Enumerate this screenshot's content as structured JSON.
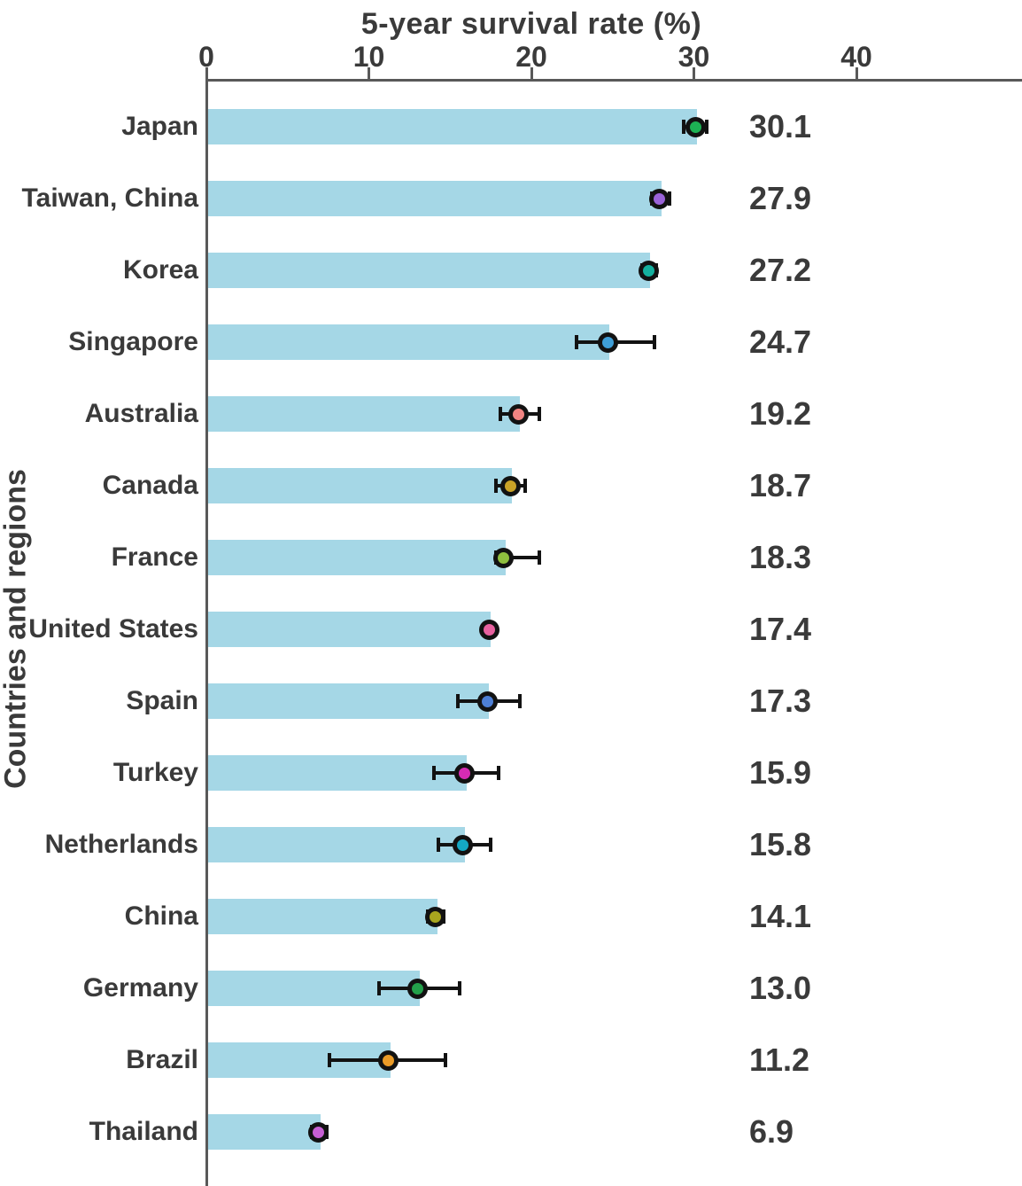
{
  "chart_data": {
    "type": "bar",
    "orientation": "horizontal",
    "title": "5-year survival rate (%)",
    "ylabel": "Countries and regions",
    "xlabel": "",
    "xlim": [
      0,
      50
    ],
    "xticks": [
      0,
      10,
      20,
      30,
      40
    ],
    "grid": false,
    "legend": "none",
    "bar_color": "#a5d7e6",
    "error_bar_color": "#121212",
    "axis_color": "#595959",
    "text_color": "#3a3a3a",
    "categories": [
      "Japan",
      "Taiwan, China",
      "Korea",
      "Singapore",
      "Australia",
      "Canada",
      "France",
      "United States",
      "Spain",
      "Turkey",
      "Netherlands",
      "China",
      "Germany",
      "Brazil",
      "Thailand"
    ],
    "values": [
      30.1,
      27.9,
      27.2,
      24.7,
      19.2,
      18.7,
      18.3,
      17.4,
      17.3,
      15.9,
      15.8,
      14.1,
      13.0,
      11.2,
      6.9
    ],
    "value_labels": [
      "30.1",
      "27.9",
      "27.2",
      "24.7",
      "19.2",
      "18.7",
      "18.3",
      "17.4",
      "17.3",
      "15.9",
      "15.8",
      "14.1",
      "13.0",
      "11.2",
      "6.9"
    ],
    "error_low": [
      29.4,
      27.4,
      26.8,
      22.8,
      18.1,
      17.8,
      17.8,
      17.1,
      15.5,
      14.0,
      14.3,
      13.6,
      10.6,
      7.6,
      6.5
    ],
    "error_high": [
      30.8,
      28.5,
      27.7,
      27.6,
      20.5,
      19.6,
      20.5,
      17.7,
      19.3,
      18.0,
      17.5,
      14.6,
      15.6,
      14.7,
      7.4
    ],
    "marker_colors": [
      "#1db254",
      "#9a63d8",
      "#14b09e",
      "#3f9fd8",
      "#f28482",
      "#c9a227",
      "#8fbf3f",
      "#e8619f",
      "#4d7fd6",
      "#d62bb4",
      "#14a8c4",
      "#a8a51e",
      "#23a04a",
      "#eb9b27",
      "#c75fd4"
    ],
    "tick_labels": [
      "0",
      "10",
      "20",
      "30",
      "40"
    ]
  }
}
